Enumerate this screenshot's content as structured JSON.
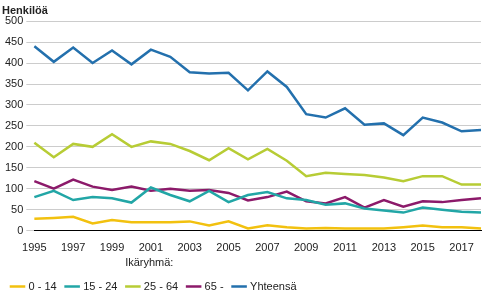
{
  "chart_data": {
    "type": "line",
    "y_label": "Henkilöä",
    "legend_title": "Ikäryhmä:",
    "categories": [
      1995,
      null,
      1997,
      null,
      1999,
      null,
      2001,
      null,
      2003,
      null,
      2005,
      null,
      2007,
      null,
      2009,
      null,
      2011,
      null,
      2013,
      null,
      2015,
      null,
      2017,
      null
    ],
    "series": [
      {
        "name": "0 - 14",
        "color": "#f2c10f",
        "values": [
          28,
          30,
          33,
          17,
          25,
          20,
          20,
          20,
          22,
          12,
          22,
          5,
          13,
          8,
          5,
          6,
          5,
          5,
          5,
          8,
          12,
          8,
          8,
          5
        ]
      },
      {
        "name": "15 - 24",
        "color": "#22a6a6",
        "values": [
          80,
          95,
          73,
          80,
          77,
          67,
          103,
          85,
          70,
          95,
          68,
          85,
          92,
          77,
          73,
          62,
          65,
          53,
          48,
          43,
          55,
          50,
          45,
          43
        ]
      },
      {
        "name": "25 - 64",
        "color": "#b7cc35",
        "values": [
          210,
          175,
          207,
          200,
          230,
          200,
          213,
          207,
          190,
          168,
          197,
          170,
          195,
          167,
          130,
          138,
          135,
          133,
          127,
          118,
          130,
          130,
          110,
          110
        ]
      },
      {
        "name": "65 -",
        "color": "#8c1a6a",
        "values": [
          118,
          100,
          122,
          105,
          97,
          105,
          95,
          100,
          95,
          97,
          90,
          72,
          80,
          93,
          70,
          65,
          80,
          55,
          73,
          57,
          70,
          68,
          73,
          77
        ]
      },
      {
        "name": "Yhteensä",
        "color": "#2370ad",
        "values": [
          440,
          403,
          437,
          400,
          430,
          397,
          432,
          415,
          378,
          375,
          377,
          335,
          380,
          343,
          278,
          270,
          292,
          253,
          256,
          228,
          270,
          258,
          237,
          240
        ]
      }
    ],
    "ylim": [
      0,
      500
    ],
    "yticks": [
      0,
      50,
      100,
      150,
      200,
      250,
      300,
      350,
      400,
      450,
      500
    ],
    "grid": true,
    "legend": "bottom"
  }
}
